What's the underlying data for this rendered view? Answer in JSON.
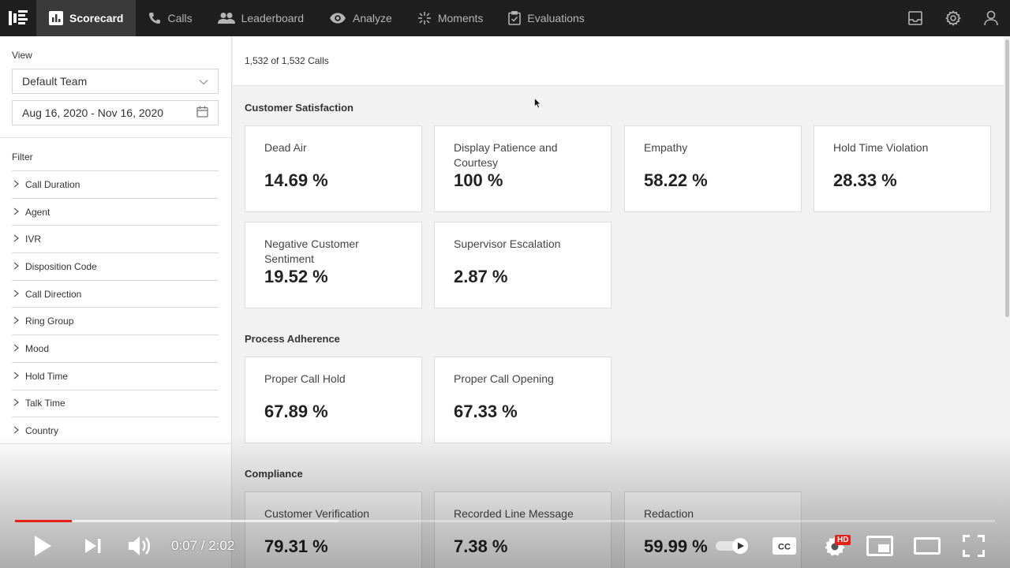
{
  "nav": {
    "items": [
      {
        "label": "Scorecard",
        "active": true,
        "icon": "bar-chart-icon"
      },
      {
        "label": "Calls",
        "active": false,
        "icon": "phone-icon"
      },
      {
        "label": "Leaderboard",
        "active": false,
        "icon": "people-icon"
      },
      {
        "label": "Analyze",
        "active": false,
        "icon": "eye-icon"
      },
      {
        "label": "Moments",
        "active": false,
        "icon": "sparkle-icon"
      },
      {
        "label": "Evaluations",
        "active": false,
        "icon": "clipboard-check-icon"
      }
    ],
    "right_icons": [
      "inbox-icon",
      "gear-icon",
      "user-icon"
    ]
  },
  "sidebar": {
    "view_label": "View",
    "team_select": "Default Team",
    "date_range": "Aug 16, 2020 - Nov 16, 2020",
    "filter_label": "Filter",
    "filters": [
      "Call Duration",
      "Agent",
      "IVR",
      "Disposition Code",
      "Call Direction",
      "Ring Group",
      "Mood",
      "Hold Time",
      "Talk Time",
      "Country"
    ]
  },
  "main": {
    "calls_count": "1,532 of 1,532 Calls",
    "sections": [
      {
        "title": "Customer Satisfaction",
        "cards": [
          {
            "title": "Dead Air",
            "value": "14.69 %"
          },
          {
            "title": "Display Patience and Courtesy",
            "value": "100 %"
          },
          {
            "title": "Empathy",
            "value": "58.22 %"
          },
          {
            "title": "Hold Time Violation",
            "value": "28.33 %"
          },
          {
            "title": "Negative Customer Sentiment",
            "value": "19.52 %"
          },
          {
            "title": "Supervisor Escalation",
            "value": "2.87 %"
          }
        ]
      },
      {
        "title": "Process Adherence",
        "cards": [
          {
            "title": "Proper Call Hold",
            "value": "67.89 %"
          },
          {
            "title": "Proper Call Opening",
            "value": "67.33 %"
          }
        ]
      },
      {
        "title": "Compliance",
        "cards": [
          {
            "title": "Customer Verification",
            "value": "79.31 %"
          },
          {
            "title": "Recorded Line Message",
            "value": "7.38 %"
          },
          {
            "title": "Redaction",
            "value": "59.99 %"
          }
        ]
      }
    ]
  },
  "video": {
    "time": "0:07 / 2:02",
    "played_fraction": 0.058,
    "hd_badge": "HD",
    "colors": {
      "progress": "#e62117"
    }
  }
}
